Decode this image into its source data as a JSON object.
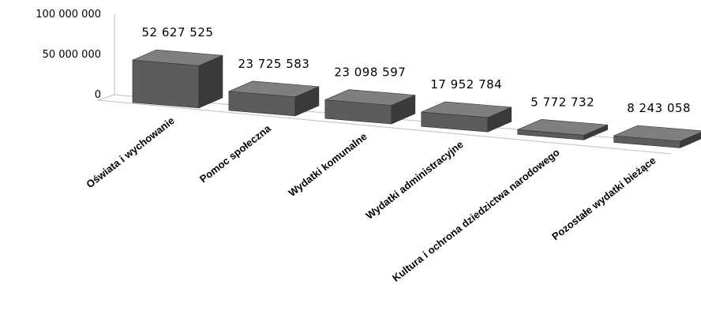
{
  "chart_data": {
    "type": "bar",
    "categories": [
      "Oświata i wychowanie",
      "Pomoc społeczna",
      "Wydatki komunalne",
      "Wydatki administracyjne",
      "Kultura i ochrona dziedzictwa narodowego",
      "Pozostałe wydatki bieżące"
    ],
    "values": [
      52627525,
      23725583,
      23098597,
      17952784,
      5772732,
      8243058
    ],
    "value_labels": [
      "52 627 525",
      "23 725 583",
      "23 098 597",
      "17 952 784",
      "5 772 732",
      "8 243 058"
    ],
    "ylim": [
      0,
      100000000
    ],
    "yticks": [
      0,
      50000000,
      100000000
    ],
    "ytick_labels": [
      "0",
      "50 000 000",
      "100 000 000"
    ],
    "title": "",
    "xlabel": "",
    "ylabel": "",
    "grid": false,
    "legend": "none",
    "colors": {
      "front": "#5c5c5c",
      "top": "#7f7f7f",
      "side": "#3a3a3a",
      "axis": "#bfbfbf"
    }
  }
}
